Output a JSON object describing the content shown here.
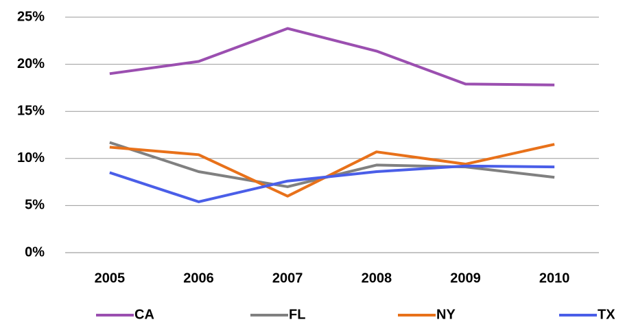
{
  "chart_data": {
    "type": "line",
    "categories": [
      "2005",
      "2006",
      "2007",
      "2008",
      "2009",
      "2010"
    ],
    "series": [
      {
        "name": "CA",
        "color": "#9b4fb0",
        "values": [
          19.0,
          20.3,
          23.8,
          21.4,
          17.9,
          17.8
        ]
      },
      {
        "name": "FL",
        "color": "#808080",
        "values": [
          11.7,
          8.6,
          7.0,
          9.3,
          9.1,
          8.0
        ]
      },
      {
        "name": "NY",
        "color": "#e8711a",
        "values": [
          11.2,
          10.4,
          6.0,
          10.7,
          9.4,
          11.5
        ]
      },
      {
        "name": "TX",
        "color": "#4a5ee8",
        "values": [
          8.5,
          5.4,
          7.6,
          8.6,
          9.2,
          9.1
        ]
      }
    ],
    "ylim": [
      0,
      25
    ],
    "yticks": [
      {
        "value": 0,
        "label": "0%"
      },
      {
        "value": 5,
        "label": "5%"
      },
      {
        "value": 10,
        "label": "10%"
      },
      {
        "value": 15,
        "label": "15%"
      },
      {
        "value": 20,
        "label": "20%"
      },
      {
        "value": 25,
        "label": "25%"
      }
    ],
    "grid": true
  }
}
